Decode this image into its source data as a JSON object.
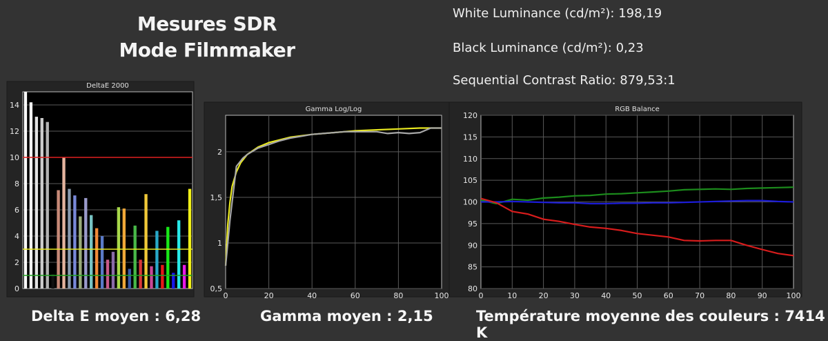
{
  "header": {
    "title_line1": "Mesures SDR",
    "title_line2": "Mode Filmmaker"
  },
  "stats": {
    "white_luminance": "White Luminance (cd/m²):  198,19",
    "black_luminance": "Black Luminance (cd/m²):  0,23",
    "contrast_ratio": "Sequential Contrast Ratio:  879,53:1"
  },
  "captions": {
    "delta_e": "Delta E moyen : 6,28",
    "gamma": "Gamma moyen : 2,15",
    "temperature": "Température moyenne des couleurs : 7414 K"
  },
  "chart_data": [
    {
      "type": "bar",
      "title": "DeltaE 2000",
      "ylim": [
        0,
        15
      ],
      "yticks": [
        0,
        2,
        4,
        6,
        8,
        10,
        12,
        14
      ],
      "reference_lines": [
        {
          "value": 10,
          "color": "#e02020"
        },
        {
          "value": 3,
          "color": "#e8e820"
        },
        {
          "value": 1,
          "color": "#20a020"
        }
      ],
      "values": [
        15.0,
        14.2,
        13.1,
        13.0,
        12.7,
        1.1,
        7.5,
        10.0,
        7.6,
        7.1,
        5.5,
        6.9,
        5.6,
        4.6,
        4.0,
        2.2,
        2.8,
        6.2,
        6.1,
        1.5,
        4.8,
        2.2,
        7.2,
        1.7,
        4.4,
        1.8,
        4.7,
        1.2,
        5.2,
        1.8,
        7.6
      ],
      "colors": [
        "#ffffff",
        "#f2f2f2",
        "#e2e2e2",
        "#cccccc",
        "#b4b4b4",
        "#101010",
        "#c88a78",
        "#e4b49e",
        "#8a9aae",
        "#7888d8",
        "#9aac7a",
        "#9a9aca",
        "#78c4c4",
        "#f08a38",
        "#5a7ac8",
        "#c85a8a",
        "#8a6aa8",
        "#a8d84a",
        "#f0a838",
        "#3a5aa8",
        "#48b848",
        "#d83838",
        "#f0c838",
        "#c84898",
        "#28a8c8",
        "#e81818",
        "#18e818",
        "#1818e8",
        "#28e8e8",
        "#e818e8",
        "#f0f018"
      ]
    },
    {
      "type": "line",
      "title": "Gamma Log/Log",
      "xlim": [
        0,
        100
      ],
      "ylim": [
        0.5,
        2.4
      ],
      "xticks": [
        0,
        20,
        40,
        60,
        80,
        100
      ],
      "yticks": [
        0.5,
        1,
        1.5,
        2
      ],
      "ytick_labels": [
        "0,5",
        "1",
        "1,5",
        "2"
      ],
      "series": [
        {
          "color": "#e8e820",
          "x": [
            0,
            1,
            2,
            3,
            5,
            7,
            10,
            15,
            20,
            30,
            40,
            50,
            60,
            70,
            80,
            90,
            100
          ],
          "y": [
            0.75,
            1.2,
            1.45,
            1.62,
            1.78,
            1.88,
            1.97,
            2.05,
            2.1,
            2.16,
            2.19,
            2.21,
            2.23,
            2.24,
            2.25,
            2.26,
            2.26
          ]
        },
        {
          "color": "#a8a8a8",
          "x": [
            0,
            2,
            5,
            8,
            10,
            15,
            20,
            25,
            30,
            35,
            40,
            45,
            50,
            55,
            60,
            65,
            70,
            75,
            80,
            85,
            90,
            95,
            100
          ],
          "y": [
            0.75,
            1.25,
            1.84,
            1.93,
            1.97,
            2.04,
            2.08,
            2.12,
            2.15,
            2.17,
            2.19,
            2.2,
            2.21,
            2.22,
            2.22,
            2.22,
            2.22,
            2.2,
            2.21,
            2.2,
            2.21,
            2.26,
            2.26
          ]
        }
      ]
    },
    {
      "type": "line",
      "title": "RGB Balance",
      "xlim": [
        0,
        100
      ],
      "ylim": [
        80,
        120
      ],
      "xticks": [
        0,
        10,
        20,
        30,
        40,
        50,
        60,
        70,
        80,
        90,
        100
      ],
      "yticks": [
        80,
        85,
        90,
        95,
        100,
        105,
        110,
        115,
        120
      ],
      "series": [
        {
          "color": "#1c8c1c",
          "x": [
            0,
            5,
            10,
            15,
            20,
            25,
            30,
            35,
            40,
            45,
            50,
            55,
            60,
            65,
            70,
            75,
            80,
            85,
            90,
            95,
            100
          ],
          "y": [
            100.4,
            99.6,
            100.6,
            100.4,
            100.9,
            101.1,
            101.4,
            101.5,
            101.8,
            101.9,
            102.1,
            102.3,
            102.5,
            102.8,
            102.9,
            103.0,
            102.9,
            103.1,
            103.2,
            103.3,
            103.4
          ]
        },
        {
          "color": "#1c1cd8",
          "x": [
            0,
            5,
            10,
            15,
            20,
            25,
            30,
            35,
            40,
            45,
            50,
            55,
            60,
            65,
            70,
            75,
            80,
            85,
            90,
            95,
            100
          ],
          "y": [
            100.0,
            100.0,
            100.1,
            100.0,
            99.9,
            99.8,
            99.8,
            99.6,
            99.6,
            99.7,
            99.7,
            99.8,
            99.8,
            99.9,
            100.0,
            100.1,
            100.2,
            100.3,
            100.3,
            100.1,
            100.0
          ]
        },
        {
          "color": "#d81c1c",
          "x": [
            0,
            5,
            10,
            15,
            20,
            25,
            30,
            35,
            40,
            45,
            50,
            55,
            60,
            65,
            70,
            75,
            80,
            85,
            90,
            95,
            100
          ],
          "y": [
            100.8,
            99.8,
            97.8,
            97.2,
            96.0,
            95.5,
            94.8,
            94.2,
            93.9,
            93.4,
            92.7,
            92.3,
            91.9,
            91.1,
            91.0,
            91.1,
            91.1,
            90.0,
            89.0,
            88.1,
            87.6
          ]
        }
      ]
    }
  ]
}
